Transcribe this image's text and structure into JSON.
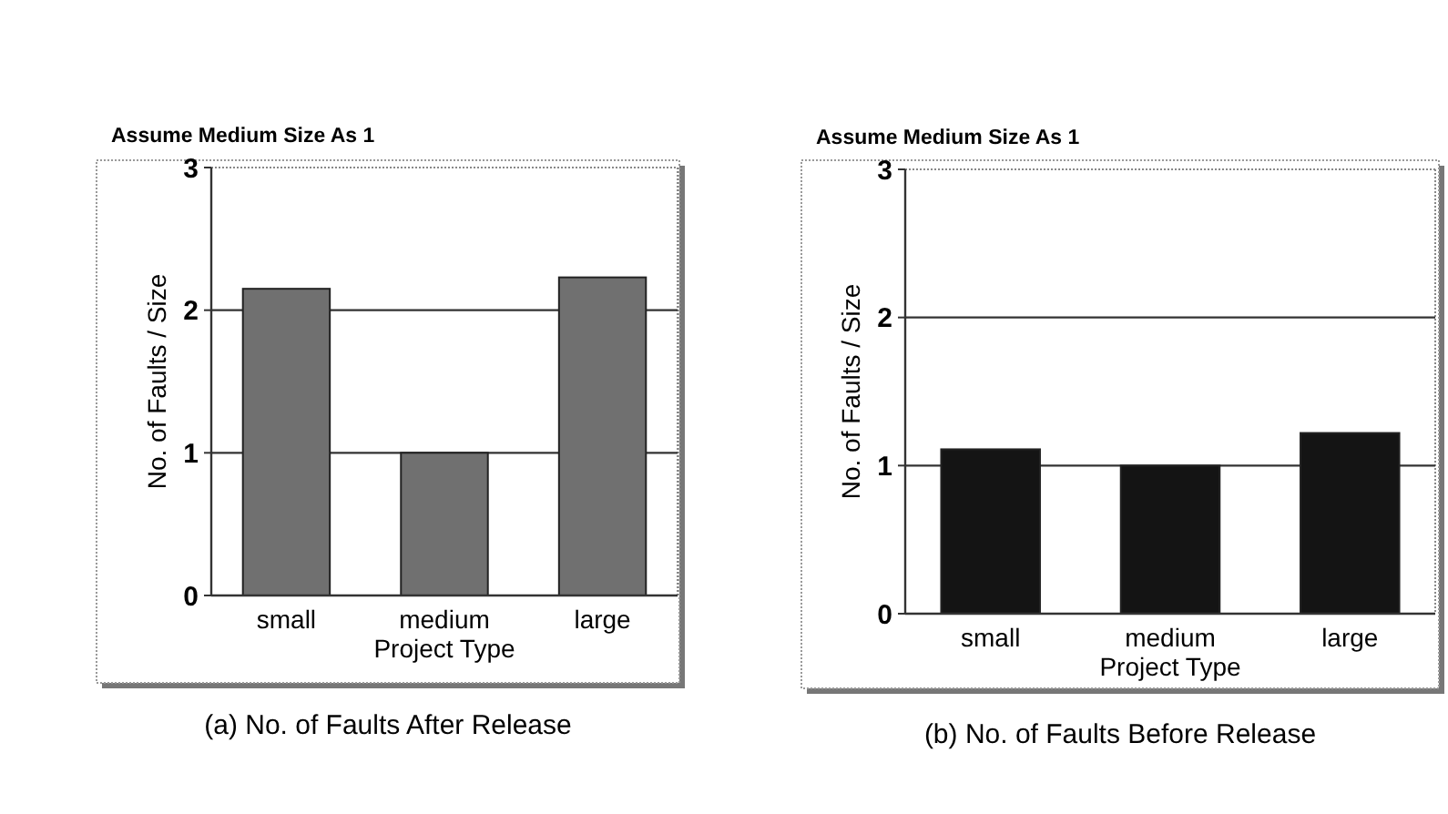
{
  "chart_data": [
    {
      "type": "bar",
      "title": "(a) No. of Faults After Release",
      "subtitle": "Assume Medium Size As 1",
      "xlabel": "Project Type",
      "ylabel": "No. of Faults / Size",
      "categories": [
        "small",
        "medium",
        "large"
      ],
      "values": [
        2.15,
        1.0,
        2.23
      ],
      "color": "#707070",
      "ylim": [
        0,
        3
      ],
      "yticks": [
        0,
        1,
        2,
        3
      ],
      "grid": "y"
    },
    {
      "type": "bar",
      "title": "(b) No. of Faults Before Release",
      "subtitle": "Assume Medium Size As 1",
      "xlabel": "Project Type",
      "ylabel": "No. of Faults / Size",
      "categories": [
        "small",
        "medium",
        "large"
      ],
      "values": [
        1.11,
        1.0,
        1.22
      ],
      "color": "#141414",
      "ylim": [
        0,
        3
      ],
      "yticks": [
        0,
        1,
        2,
        3
      ],
      "grid": "y"
    }
  ]
}
